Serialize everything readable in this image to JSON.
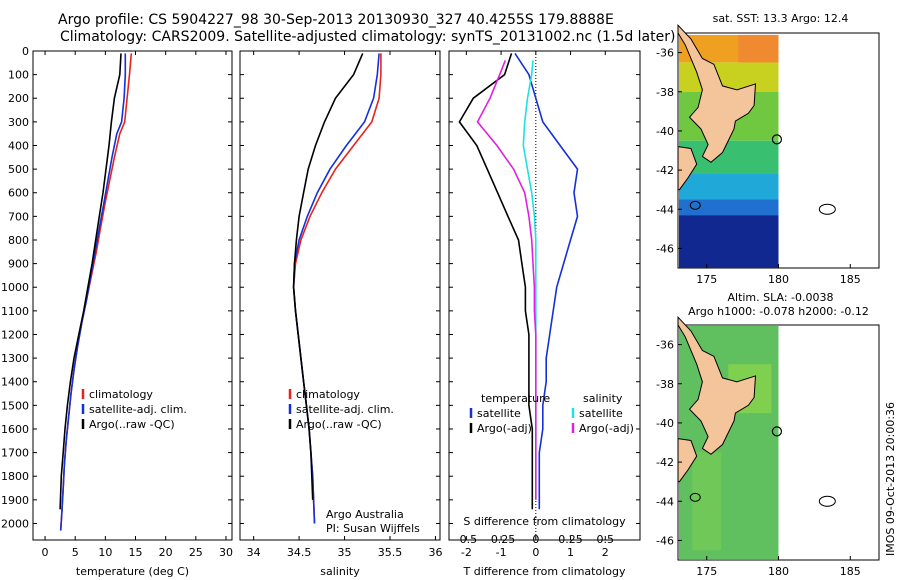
{
  "header": {
    "line1": "Argo profile: CS 5904227_98 30-Sep-2013 20130930_327 40.4255S 179.8888E",
    "line2": "Climatology: CARS2009. Satellite-adjusted climatology: synTS_20131002.nc (1.5d later)"
  },
  "side_label": "IMOS 09-Oct-2013 20:00:36",
  "footer": {
    "agency": "Argo Australia",
    "pi": "PI: Susan Wijffels"
  },
  "colors": {
    "climatology": "#e8231e",
    "satellite": "#1530d8",
    "argo": "#000000",
    "sal_sat": "#20e0e0",
    "sal_argo": "#e020e0",
    "land": "#f4c49a"
  },
  "chart_data": [
    {
      "type": "line",
      "id": "temperature",
      "xlabel": "temperature (deg C)",
      "ylabel": "",
      "xlim": [
        -2,
        31
      ],
      "ylim": [
        2070,
        0
      ],
      "xticks": [
        0,
        5,
        10,
        15,
        20,
        25,
        30
      ],
      "yticks": [
        0,
        100,
        200,
        300,
        400,
        500,
        600,
        700,
        800,
        900,
        1000,
        1100,
        1200,
        1300,
        1400,
        1500,
        1600,
        1700,
        1800,
        1900,
        2000
      ],
      "legend": [
        "climatology",
        "satellite-adj. clim.",
        "Argo(..raw -QC)"
      ],
      "series": [
        {
          "name": "climatology",
          "x": [
            14.3,
            14.0,
            13.6,
            13.2,
            12.4,
            11.5,
            10.7,
            9.9,
            9.2,
            8.5,
            7.7,
            6.9,
            6.1,
            5.4,
            4.8,
            4.3,
            3.9,
            3.5,
            3.2,
            3.0,
            2.8,
            2.6
          ],
          "y": [
            10,
            100,
            200,
            300,
            350,
            450,
            550,
            650,
            750,
            850,
            950,
            1050,
            1150,
            1250,
            1350,
            1450,
            1550,
            1650,
            1750,
            1850,
            1950,
            2030
          ]
        },
        {
          "name": "satellite-adj. clim.",
          "x": [
            13.3,
            13.3,
            13.1,
            12.7,
            11.9,
            11.1,
            10.4,
            9.7,
            9.0,
            8.3,
            7.6,
            6.9,
            6.1,
            5.4,
            4.8,
            4.3,
            3.9,
            3.5,
            3.2,
            3.0,
            2.8,
            2.6
          ],
          "y": [
            10,
            100,
            200,
            300,
            350,
            450,
            550,
            650,
            750,
            850,
            950,
            1050,
            1150,
            1250,
            1350,
            1450,
            1550,
            1650,
            1750,
            1850,
            1950,
            2030
          ]
        },
        {
          "name": "Argo(..raw -QC)",
          "x": [
            12.6,
            12.4,
            11.5,
            11.0,
            10.6,
            10.1,
            9.6,
            9.0,
            8.4,
            7.8,
            7.1,
            6.4,
            5.6,
            4.8,
            4.2,
            3.7,
            3.3,
            3.0,
            2.7,
            2.5
          ],
          "y": [
            10,
            100,
            200,
            300,
            400,
            500,
            600,
            700,
            800,
            900,
            1000,
            1100,
            1200,
            1300,
            1400,
            1500,
            1600,
            1700,
            1800,
            1940
          ]
        }
      ]
    },
    {
      "type": "line",
      "id": "salinity",
      "xlabel": "salinity",
      "ylabel": "",
      "xlim": [
        33.85,
        36.05
      ],
      "ylim": [
        2070,
        0
      ],
      "xticks": [
        34,
        34.5,
        35,
        35.5,
        36
      ],
      "legend": [
        "climatology",
        "satellite-adj. clim.",
        "Argo(..raw -QC)"
      ],
      "series": [
        {
          "name": "climatology",
          "x": [
            35.4,
            35.4,
            35.38,
            35.3,
            35.1,
            34.9,
            34.75,
            34.62,
            34.52,
            34.46,
            34.44,
            34.46,
            34.49,
            34.52,
            34.55,
            34.58,
            34.61,
            34.63,
            34.65,
            34.67
          ],
          "y": [
            10,
            100,
            200,
            300,
            400,
            500,
            600,
            700,
            800,
            900,
            1000,
            1100,
            1200,
            1300,
            1400,
            1500,
            1600,
            1700,
            1800,
            2000
          ]
        },
        {
          "name": "satellite-adj. clim.",
          "x": [
            35.38,
            35.36,
            35.32,
            35.22,
            35.02,
            34.84,
            34.7,
            34.59,
            34.5,
            34.45,
            34.44,
            34.46,
            34.49,
            34.52,
            34.55,
            34.58,
            34.61,
            34.63,
            34.65,
            34.67
          ],
          "y": [
            10,
            100,
            200,
            300,
            400,
            500,
            600,
            700,
            800,
            900,
            1000,
            1100,
            1200,
            1300,
            1400,
            1500,
            1600,
            1700,
            1800,
            2000
          ]
        },
        {
          "name": "Argo(..raw -QC)",
          "x": [
            35.2,
            35.1,
            34.9,
            34.78,
            34.68,
            34.6,
            34.55,
            34.5,
            34.47,
            34.45,
            34.44,
            34.46,
            34.49,
            34.52,
            34.55,
            34.58,
            34.61,
            34.63,
            34.65
          ],
          "y": [
            10,
            100,
            200,
            300,
            400,
            500,
            600,
            700,
            800,
            900,
            1000,
            1100,
            1200,
            1300,
            1400,
            1500,
            1600,
            1700,
            1900
          ]
        }
      ]
    },
    {
      "type": "line",
      "id": "differences",
      "xlabel": "T difference from climatology",
      "xlabel_top": "S difference from climatology",
      "xlim": [
        -2.5,
        3.0
      ],
      "ylim": [
        2070,
        0
      ],
      "xticks": [
        -2,
        -1,
        0,
        1,
        2
      ],
      "sticks": [
        -0.5,
        -0.25,
        0,
        0.25,
        0.5
      ],
      "sticklabels": [
        "-0.5",
        "-0.25",
        "0",
        "0.25",
        "0.5"
      ],
      "legend_t_title": "temperature",
      "legend_s_title": "salinity",
      "legend": [
        "satellite",
        "Argo(-adj)",
        "satellite",
        "Argo(-adj)"
      ],
      "series": [
        {
          "name": "T satellite",
          "x": [
            -0.6,
            -0.2,
            0.0,
            0.2,
            0.7,
            1.2,
            1.1,
            1.2,
            1.0,
            0.8,
            0.6,
            0.5,
            0.4,
            0.3,
            0.3,
            0.2,
            0.2,
            0.1,
            0.1,
            0.1
          ],
          "y": [
            10,
            100,
            200,
            300,
            400,
            500,
            600,
            700,
            800,
            900,
            1000,
            1100,
            1200,
            1300,
            1400,
            1500,
            1600,
            1700,
            1800,
            1940
          ]
        },
        {
          "name": "T Argo(-adj)",
          "x": [
            -0.7,
            -0.9,
            -1.8,
            -2.2,
            -1.7,
            -1.4,
            -1.1,
            -0.8,
            -0.5,
            -0.4,
            -0.3,
            -0.3,
            -0.2,
            -0.2,
            -0.2,
            -0.2,
            -0.1,
            -0.1,
            -0.1,
            -0.1
          ],
          "y": [
            10,
            100,
            200,
            300,
            400,
            500,
            600,
            700,
            800,
            900,
            1000,
            1100,
            1200,
            1300,
            1400,
            1500,
            1600,
            1700,
            1800,
            1940
          ]
        },
        {
          "name": "S satellite",
          "x": [
            -0.02,
            -0.03,
            -0.06,
            -0.08,
            -0.09,
            -0.06,
            -0.03,
            -0.01,
            0.0,
            0.0,
            0.0,
            0.0,
            0.0,
            0.0,
            0.0,
            0.0,
            0.0,
            0.0
          ],
          "y": [
            40,
            100,
            200,
            300,
            400,
            500,
            600,
            700,
            800,
            900,
            1000,
            1100,
            1200,
            1300,
            1400,
            1500,
            1600,
            1900
          ]
        },
        {
          "name": "S Argo(-adj)",
          "x": [
            -0.22,
            -0.26,
            -0.33,
            -0.42,
            -0.28,
            -0.16,
            -0.08,
            -0.05,
            -0.03,
            -0.02,
            -0.01,
            -0.01,
            0.0,
            0.0,
            0.0,
            0.0,
            0.0,
            0.0
          ],
          "y": [
            40,
            100,
            200,
            300,
            400,
            500,
            600,
            700,
            800,
            900,
            1000,
            1100,
            1200,
            1300,
            1400,
            1500,
            1600,
            1900
          ]
        }
      ]
    },
    {
      "type": "heatmap",
      "id": "sst-map",
      "title": "sat. SST: 13.3  Argo: 12.4",
      "xticks": [
        175,
        180,
        185
      ],
      "yticks": [
        -36,
        -38,
        -40,
        -42,
        -44,
        -46
      ],
      "xlim": [
        173,
        187
      ],
      "ylim": [
        -47,
        -35
      ],
      "marker": [
        179.89,
        -40.43
      ]
    },
    {
      "type": "heatmap",
      "id": "sla-map",
      "title": "Altim. SLA: -0.0038",
      "subtitle": "Argo h1000: -0.078  h2000: -0.12",
      "xticks": [
        175,
        180,
        185
      ],
      "yticks": [
        -36,
        -38,
        -40,
        -42,
        -44,
        -46
      ],
      "xlim": [
        173,
        187
      ],
      "ylim": [
        -47,
        -35
      ],
      "marker": [
        179.89,
        -40.43
      ]
    }
  ]
}
